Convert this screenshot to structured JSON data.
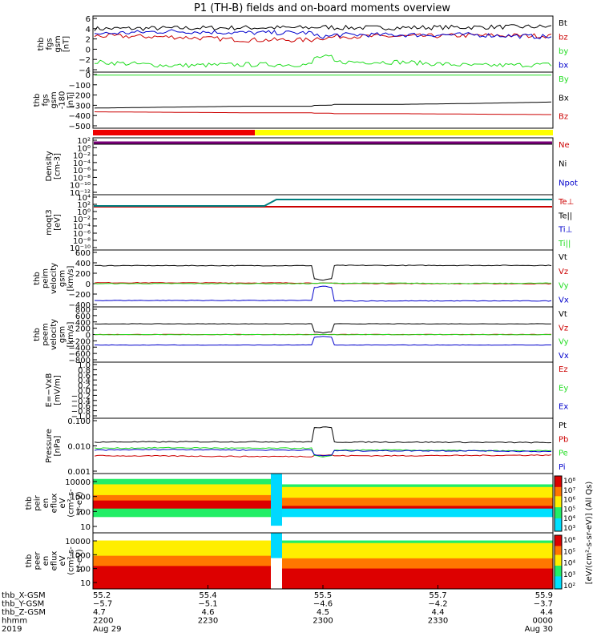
{
  "title": "P1  (TH-B) fields and on-board moments overview",
  "colors": {
    "black": "#000000",
    "red": "#cc0000",
    "green": "#22dd22",
    "blue": "#0000cc",
    "purple": "#7a007a",
    "teal": "#008080",
    "yellow": "#ffff00"
  },
  "chart_data": [
    {
      "type": "line",
      "panel": "fgs",
      "ylabel": [
        "thb",
        "fgs",
        "gsm",
        "[nT]"
      ],
      "yticks": [
        "6",
        "4",
        "2",
        "0",
        "−2",
        "−4"
      ],
      "legend": [
        "Bt",
        "bz",
        "by",
        "bx"
      ],
      "series": [
        {
          "name": "Bt",
          "values": [
            4.0,
            4.1,
            4.2,
            4.3,
            4.2,
            4.3,
            4.4
          ]
        },
        {
          "name": "bz",
          "values": [
            2.6,
            2.4,
            1.8,
            2.2,
            2.5,
            2.7,
            2.6
          ]
        },
        {
          "name": "by",
          "values": [
            -2.5,
            -3.2,
            -3.0,
            -1.5,
            -2.5,
            -3.2,
            -3.0
          ]
        },
        {
          "name": "bx",
          "values": [
            3.0,
            3.5,
            3.2,
            2.5,
            2.8,
            2.8,
            2.4
          ]
        }
      ],
      "ylim": [
        -4,
        6
      ]
    },
    {
      "type": "line",
      "panel": "fgs-offset",
      "ylabel": [
        "thb",
        "fgs",
        "gsm",
        "-180",
        "[nT]"
      ],
      "yticks": [
        "0",
        "−100",
        "−200",
        "−300",
        "−400",
        "−500"
      ],
      "legend": [
        "By",
        "Bx",
        "Bz"
      ],
      "series": [
        {
          "name": "By",
          "values": [
            -6,
            -6,
            -6,
            -6,
            -6,
            -6,
            -6
          ]
        },
        {
          "name": "Bx",
          "values": [
            -360,
            -350,
            -340,
            -330,
            -320,
            -310,
            -295
          ]
        },
        {
          "name": "Bz",
          "values": [
            -400,
            -405,
            -410,
            -415,
            -420,
            -425,
            -430
          ]
        }
      ],
      "ylim": [
        -550,
        0
      ]
    },
    {
      "type": "line",
      "panel": "density",
      "ylabel": [
        "Density",
        "[cm-3]"
      ],
      "yticks": [
        "10²",
        "10⁰",
        "10⁻²",
        "10⁻⁴",
        "10⁻⁶",
        "10⁻⁸",
        "10⁻¹⁰",
        "10⁻¹²"
      ],
      "legend": [
        "Ne",
        "Ni",
        "Npot"
      ]
    },
    {
      "type": "line",
      "panel": "temperature",
      "ylabel": [
        "moqt3",
        "[eV]"
      ],
      "yticks": [
        "10⁴",
        "10²",
        "10⁰",
        "10⁻²",
        "10⁻⁴",
        "10⁻⁶",
        "10⁻⁸",
        "10⁻¹⁰"
      ],
      "legend": [
        "Te⊥",
        "Te||",
        "Ti⊥",
        "Ti||"
      ]
    },
    {
      "type": "line",
      "panel": "peim-velocity",
      "ylabel": [
        "thb",
        "peim",
        "velocity",
        "gsm",
        "[km/s]"
      ],
      "yticks": [
        "600",
        "400",
        "200",
        "0",
        "−200",
        "−400"
      ],
      "legend": [
        "Vt",
        "Vz",
        "Vy",
        "Vx"
      ],
      "series": [
        {
          "name": "Vt",
          "values": [
            370,
            370,
            370,
            60,
            375,
            375,
            375
          ]
        },
        {
          "name": "Vz",
          "values": [
            10,
            8,
            5,
            0,
            -8,
            -10,
            -12
          ]
        },
        {
          "name": "Vy",
          "values": [
            -10,
            -10,
            -10,
            0,
            0,
            -5,
            0
          ]
        },
        {
          "name": "Vx",
          "values": [
            -365,
            -365,
            -365,
            -60,
            -375,
            -375,
            -375
          ]
        }
      ],
      "ylim": [
        -450,
        650
      ]
    },
    {
      "type": "line",
      "panel": "peem-velocity",
      "ylabel": [
        "thb",
        "peem",
        "velocity",
        "gsm",
        "[km/s]"
      ],
      "yticks": [
        "800",
        "600",
        "400",
        "200",
        "0",
        "−200",
        "−400",
        "−600",
        "−800"
      ],
      "legend": [
        "Vt",
        "Vz",
        "Vy",
        "Vx"
      ],
      "series": [
        {
          "name": "Vt",
          "values": [
            360,
            360,
            360,
            60,
            360,
            360,
            360
          ]
        },
        {
          "name": "Vz",
          "values": [
            0,
            0,
            0,
            0,
            0,
            0,
            0
          ]
        },
        {
          "name": "Vy",
          "values": [
            -5,
            -5,
            -5,
            0,
            -5,
            -5,
            -5
          ]
        },
        {
          "name": "Vx",
          "values": [
            -355,
            -355,
            -355,
            -60,
            -355,
            -355,
            -355
          ]
        }
      ],
      "ylim": [
        -850,
        850
      ]
    },
    {
      "type": "line",
      "panel": "efield",
      "ylabel": [
        "E=−VxB",
        "[mV/m]"
      ],
      "yticks": [
        "1.0",
        "0.8",
        "0.6",
        "0.4",
        "0.2",
        "0.0",
        "−0.2",
        "−0.4",
        "−0.6",
        "−0.8",
        "−1.0"
      ],
      "legend": [
        "Ez",
        "Ey",
        "Ex"
      ]
    },
    {
      "type": "line",
      "panel": "pressure",
      "ylabel": [
        "Pressure",
        "[nPa]"
      ],
      "yticks": [
        "0.100",
        "0.010",
        "0.001"
      ],
      "legend": [
        "Pt",
        "Pb",
        "Pe",
        "Pi"
      ],
      "series": [
        {
          "name": "Pt",
          "values": [
            0.032,
            0.033,
            0.033,
            0.2,
            0.032,
            0.031,
            0.03
          ]
        },
        {
          "name": "Pb",
          "values": [
            0.006,
            0.0058,
            0.0055,
            0.0065,
            0.006,
            0.0062,
            0.0065
          ]
        },
        {
          "name": "Pe",
          "values": [
            0.015,
            0.016,
            0.015,
            0.005,
            0.012,
            0.011,
            0.011
          ]
        },
        {
          "name": "Pi",
          "values": [
            0.012,
            0.013,
            0.012,
            0.006,
            0.011,
            0.011,
            0.01
          ]
        }
      ],
      "ylim": [
        0.001,
        0.4
      ]
    },
    {
      "type": "heatmap",
      "panel": "peir",
      "ylabel": [
        "thb",
        "peir",
        "en",
        "eflux",
        "eV",
        "(cm²-s-",
        "sr-eV)"
      ],
      "yticks": [
        "10000",
        "1000",
        "100",
        "10"
      ]
    },
    {
      "type": "heatmap",
      "panel": "peer",
      "ylabel": [
        "thb",
        "peer",
        "en",
        "eflux",
        "eV",
        "(cm²-s-",
        "sr-eV)"
      ],
      "yticks": [
        "10000",
        "1000",
        "100",
        "10"
      ]
    }
  ],
  "colorbar": {
    "upper_ticks": [
      "10⁸",
      "10⁷",
      "10⁶",
      "10⁵",
      "10⁴",
      "10³"
    ],
    "lower_ticks": [
      "10⁶",
      "10⁵",
      "10⁴",
      "10³",
      "10²"
    ],
    "label": "[eV/(cm²-s-sr-eV)] (All Qs)"
  },
  "bottom_axis": {
    "row_labels": [
      "thb_X-GSM",
      "thb_Y-GSM",
      "thb_Z-GSM",
      "hhmm",
      "2019"
    ],
    "columns": [
      {
        "x": "55.2",
        "y": "−5.7",
        "z": "4.7",
        "t": "2200",
        "d": "Aug 29"
      },
      {
        "x": "55.4",
        "y": "−5.1",
        "z": "4.6",
        "t": "2230",
        "d": ""
      },
      {
        "x": "55.5",
        "y": "−4.6",
        "z": "4.5",
        "t": "2300",
        "d": ""
      },
      {
        "x": "55.7",
        "y": "−4.2",
        "z": "4.4",
        "t": "2330",
        "d": ""
      },
      {
        "x": "55.9",
        "y": "−3.7",
        "z": "4.4",
        "t": "0000",
        "d": "Aug 30"
      }
    ]
  }
}
